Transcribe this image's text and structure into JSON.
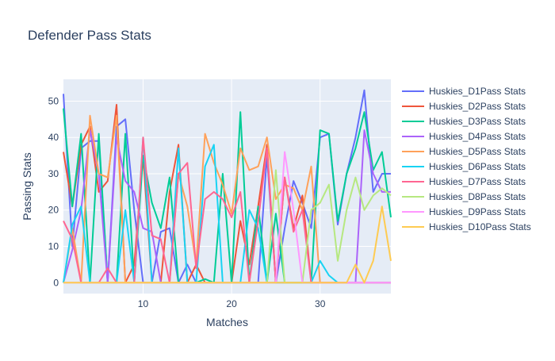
{
  "chart_data": {
    "type": "line",
    "title": "Defender Pass Stats",
    "xlabel": "Matches",
    "ylabel": "Passing Stats",
    "xlim": [
      1,
      38
    ],
    "ylim": [
      -3,
      56
    ],
    "xticks": [
      10,
      20,
      30
    ],
    "yticks": [
      0,
      10,
      20,
      30,
      40,
      50
    ],
    "grid": true,
    "legend": "right",
    "background": "#e5ecf6",
    "x": [
      1,
      2,
      3,
      4,
      5,
      6,
      7,
      8,
      9,
      10,
      11,
      12,
      13,
      14,
      15,
      16,
      17,
      18,
      19,
      20,
      21,
      22,
      23,
      24,
      25,
      26,
      27,
      28,
      29,
      30,
      31,
      32,
      33,
      34,
      35,
      36,
      37,
      38
    ],
    "series": [
      {
        "name": "Huskies_D1Pass Stats",
        "color": "#636efa",
        "values": [
          52,
          10,
          37,
          39,
          39,
          0,
          43,
          45,
          20,
          0,
          0,
          14,
          15,
          0,
          5,
          0,
          0,
          0,
          0,
          0,
          0,
          0,
          0,
          35,
          0,
          15,
          28,
          22,
          15,
          40,
          41,
          16,
          30,
          40,
          53,
          25,
          30,
          30
        ]
      },
      {
        "name": "Huskies_D2Pass Stats",
        "color": "#ef553b",
        "values": [
          36,
          21,
          38,
          43,
          25,
          28,
          49,
          0,
          5,
          35,
          0,
          0,
          25,
          38,
          0,
          5,
          0,
          0,
          0,
          0,
          17,
          5,
          21,
          38,
          0,
          29,
          15,
          24,
          0,
          0,
          0,
          0,
          0,
          0,
          0,
          0,
          0,
          0
        ]
      },
      {
        "name": "Huskies_D3Pass Stats",
        "color": "#00cc96",
        "values": [
          48,
          21,
          41,
          0,
          41,
          0,
          0,
          41,
          0,
          35,
          22,
          15,
          29,
          0,
          0,
          0,
          1,
          0,
          30,
          0,
          47,
          0,
          21,
          0,
          19,
          0,
          0,
          0,
          0,
          42,
          41,
          17,
          30,
          37,
          47,
          31,
          36,
          18
        ]
      },
      {
        "name": "Huskies_D4Pass Stats",
        "color": "#ab63fa",
        "values": [
          0,
          9,
          20,
          42,
          30,
          0,
          40,
          28,
          25,
          15,
          14,
          0,
          0,
          0,
          0,
          0,
          0,
          0,
          0,
          0,
          0,
          0,
          0,
          0,
          0,
          0,
          0,
          0,
          0,
          0,
          0,
          0,
          0,
          0,
          42,
          30,
          25,
          25
        ]
      },
      {
        "name": "Huskies_D5Pass Stats",
        "color": "#ffa15a",
        "values": [
          0,
          15,
          0,
          46,
          30,
          29,
          46,
          0,
          0,
          0,
          0,
          0,
          0,
          30,
          21,
          5,
          41,
          33,
          27,
          19,
          37,
          31,
          32,
          40,
          23,
          27,
          26,
          20,
          32,
          0,
          0,
          0,
          0,
          0,
          0,
          0,
          0,
          0
        ]
      },
      {
        "name": "Huskies_D6Pass Stats",
        "color": "#19d3f3",
        "values": [
          0,
          16,
          21,
          0,
          0,
          0,
          0,
          20,
          0,
          40,
          0,
          0,
          0,
          37,
          0,
          0,
          32,
          38,
          0,
          0,
          0,
          20,
          15,
          0,
          0,
          0,
          0,
          0,
          0,
          6,
          2,
          0,
          0,
          0,
          0,
          0,
          0,
          0
        ]
      },
      {
        "name": "Huskies_D7Pass Stats",
        "color": "#ff6692",
        "values": [
          17,
          12,
          0,
          0,
          0,
          4,
          0,
          0,
          0,
          40,
          13,
          12,
          0,
          30,
          33,
          4,
          23,
          25,
          23,
          18,
          25,
          0,
          17,
          37,
          0,
          29,
          14,
          20,
          0,
          0,
          0,
          0,
          0,
          0,
          0,
          0,
          0,
          0
        ]
      },
      {
        "name": "Huskies_D8Pass Stats",
        "color": "#b6e880",
        "values": [
          0,
          0,
          0,
          0,
          0,
          0,
          0,
          0,
          0,
          0,
          0,
          0,
          0,
          0,
          0,
          0,
          0,
          0,
          0,
          0,
          0,
          0,
          0,
          0,
          31,
          0,
          0,
          0,
          20,
          22,
          27,
          6,
          20,
          29,
          20,
          24,
          26,
          24
        ]
      },
      {
        "name": "Huskies_D9Pass Stats",
        "color": "#ff97ff",
        "values": [
          0,
          0,
          0,
          0,
          0,
          0,
          0,
          0,
          0,
          0,
          0,
          0,
          0,
          0,
          0,
          0,
          0,
          0,
          0,
          0,
          0,
          0,
          0,
          0,
          0,
          36,
          20,
          0,
          0,
          0,
          0,
          0,
          0,
          0,
          0,
          0,
          0,
          0
        ]
      },
      {
        "name": "Huskies_D10Pass Stats",
        "color": "#fecb52",
        "values": [
          0,
          0,
          0,
          0,
          0,
          0,
          0,
          0,
          0,
          0,
          0,
          0,
          0,
          0,
          0,
          0,
          0,
          0,
          0,
          0,
          0,
          0,
          0,
          0,
          0,
          0,
          0,
          0,
          0,
          0,
          0,
          0,
          0,
          5,
          0,
          6,
          21,
          6
        ]
      }
    ]
  }
}
